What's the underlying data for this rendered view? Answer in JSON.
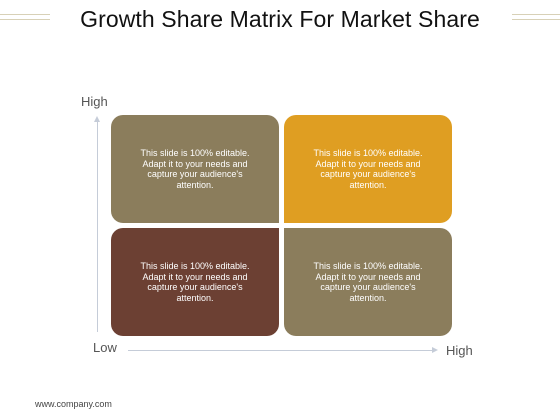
{
  "title": "Growth Share Matrix For Market Share",
  "axes": {
    "y_high": "High",
    "origin_low": "Low",
    "x_high": "High"
  },
  "quadrants": [
    {
      "id": "top-left",
      "text": "This slide is 100% editable. Adapt it to your needs and capture your audience's attention.",
      "color": "#8b7d5c"
    },
    {
      "id": "top-right",
      "text": "This slide is 100% editable. Adapt it to your needs and capture your audience's attention.",
      "color": "#df9e22"
    },
    {
      "id": "bottom-left",
      "text": "This slide is 100% editable. Adapt it to your needs and capture your audience's attention.",
      "color": "#6c4033"
    },
    {
      "id": "bottom-right",
      "text": "This slide is 100% editable. Adapt it to your needs and capture your audience's attention.",
      "color": "#8b7d5c"
    }
  ],
  "footer": "www.company.com"
}
